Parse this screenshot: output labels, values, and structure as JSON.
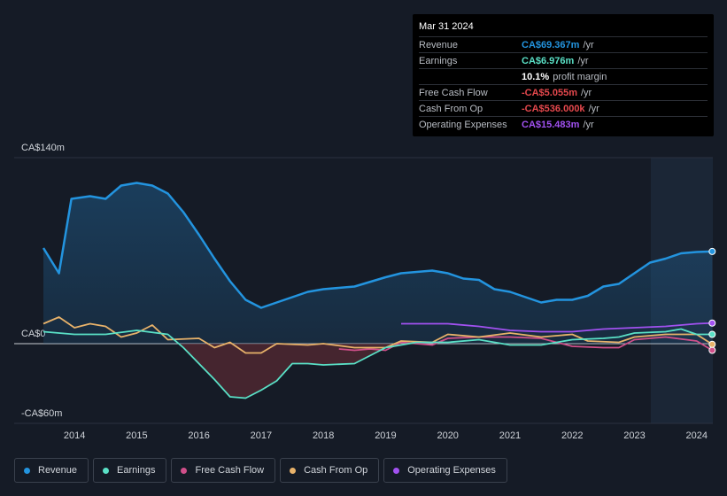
{
  "chart_data": {
    "type": "line",
    "xlim": [
      2013.03,
      2024.26
    ],
    "xticks": [
      2014,
      2015,
      2016,
      2017,
      2018,
      2019,
      2020,
      2021,
      2022,
      2023,
      2024
    ],
    "ylim": [
      -60,
      140
    ],
    "yticks": [
      {
        "value": -60,
        "label": "-CA$60m"
      },
      {
        "value": 0,
        "label": "CA$0"
      },
      {
        "value": 140,
        "label": "CA$140m"
      }
    ],
    "grid": true,
    "series": [
      {
        "name": "Revenue",
        "color": "#2394df",
        "x": [
          2013.5,
          2013.75,
          2013.95,
          2014.25,
          2014.5,
          2014.75,
          2015.0,
          2015.25,
          2015.5,
          2015.75,
          2016.0,
          2016.25,
          2016.5,
          2016.75,
          2017.0,
          2017.25,
          2017.5,
          2017.75,
          2018.0,
          2018.5,
          2019.0,
          2019.25,
          2019.5,
          2019.75,
          2020.0,
          2020.25,
          2020.5,
          2020.75,
          2021.0,
          2021.25,
          2021.5,
          2021.75,
          2022.0,
          2022.25,
          2022.5,
          2022.75,
          2023.0,
          2023.25,
          2023.5,
          2023.75,
          2024.0,
          2024.25
        ],
        "values": [
          72,
          53,
          109,
          111,
          109,
          119,
          121,
          119,
          113,
          99,
          82,
          64,
          47,
          33,
          27,
          31,
          35,
          39,
          41,
          43,
          50,
          53,
          54,
          55,
          53,
          49,
          48,
          41,
          39,
          35,
          31,
          33,
          33,
          36,
          43,
          45,
          53,
          61,
          64,
          68,
          69,
          69.4
        ]
      },
      {
        "name": "Earnings",
        "color": "#5ae0c6",
        "x": [
          2013.5,
          2014.0,
          2014.5,
          2015.0,
          2015.5,
          2015.75,
          2016.0,
          2016.25,
          2016.5,
          2016.75,
          2017.0,
          2017.25,
          2017.5,
          2017.75,
          2018.0,
          2018.5,
          2018.75,
          2019.0,
          2019.5,
          2020.0,
          2020.5,
          2021.0,
          2021.5,
          2022.0,
          2022.5,
          2022.75,
          2023.0,
          2023.5,
          2023.75,
          2024.0,
          2024.25
        ],
        "values": [
          9,
          7,
          7,
          10,
          7,
          -3,
          -15,
          -27,
          -40,
          -41,
          -35,
          -28,
          -15,
          -15,
          -16,
          -15,
          -9,
          -3,
          1,
          1,
          3,
          -1,
          -1,
          3,
          4,
          5,
          8,
          9,
          11,
          7,
          7
        ]
      },
      {
        "name": "Free Cash Flow",
        "color": "#d04f8a",
        "x": [
          2018.25,
          2018.5,
          2018.75,
          2019.0,
          2019.25,
          2019.75,
          2020.0,
          2020.5,
          2021.0,
          2021.5,
          2022.0,
          2022.5,
          2022.75,
          2023.0,
          2023.5,
          2024.0,
          2024.25
        ],
        "values": [
          -4,
          -5,
          -4,
          -5,
          1,
          -1,
          4,
          5,
          5,
          4,
          -2,
          -3,
          -3,
          3,
          5,
          2,
          -5
        ]
      },
      {
        "name": "Cash From Op",
        "color": "#e8b26a",
        "x": [
          2013.5,
          2013.75,
          2014.0,
          2014.25,
          2014.5,
          2014.75,
          2015.0,
          2015.25,
          2015.5,
          2016.0,
          2016.25,
          2016.5,
          2016.75,
          2017.0,
          2017.25,
          2017.75,
          2018.0,
          2018.5,
          2019.0,
          2019.25,
          2019.75,
          2020.0,
          2020.5,
          2021.0,
          2021.5,
          2022.0,
          2022.25,
          2022.75,
          2023.0,
          2023.5,
          2024.0,
          2024.25
        ],
        "values": [
          15,
          20,
          12,
          15,
          13,
          5,
          8,
          14,
          3,
          4,
          -3,
          1,
          -7,
          -7,
          0,
          -1,
          0,
          -3,
          -3,
          2,
          1,
          7,
          5,
          8,
          5,
          7,
          2,
          1,
          5,
          7,
          7,
          -0.5
        ]
      },
      {
        "name": "Operating Expenses",
        "color": "#a151f0",
        "x": [
          2019.25,
          2020.0,
          2020.5,
          2021.0,
          2021.5,
          2022.0,
          2022.5,
          2023.0,
          2023.5,
          2024.0,
          2024.25
        ],
        "values": [
          15,
          15,
          13,
          10,
          9,
          9,
          11,
          12,
          13,
          15,
          15.5
        ]
      }
    ]
  },
  "tooltip": {
    "date": "Mar 31 2024",
    "rows": [
      {
        "label": "Revenue",
        "value": "CA$69.367m",
        "suffix": "/yr",
        "color": "#2394df"
      },
      {
        "label": "Earnings",
        "value": "CA$6.976m",
        "suffix": "/yr",
        "color": "#5ae0c6"
      },
      {
        "value": "10.1%",
        "suffix": "profit margin",
        "color": "#ffffff"
      },
      {
        "label": "Free Cash Flow",
        "value": "-CA$5.055m",
        "suffix": "/yr",
        "color": "#e5484d"
      },
      {
        "label": "Cash From Op",
        "value": "-CA$536.000k",
        "suffix": "/yr",
        "color": "#e5484d"
      },
      {
        "label": "Operating Expenses",
        "value": "CA$15.483m",
        "suffix": "/yr",
        "color": "#a151f0"
      }
    ]
  }
}
